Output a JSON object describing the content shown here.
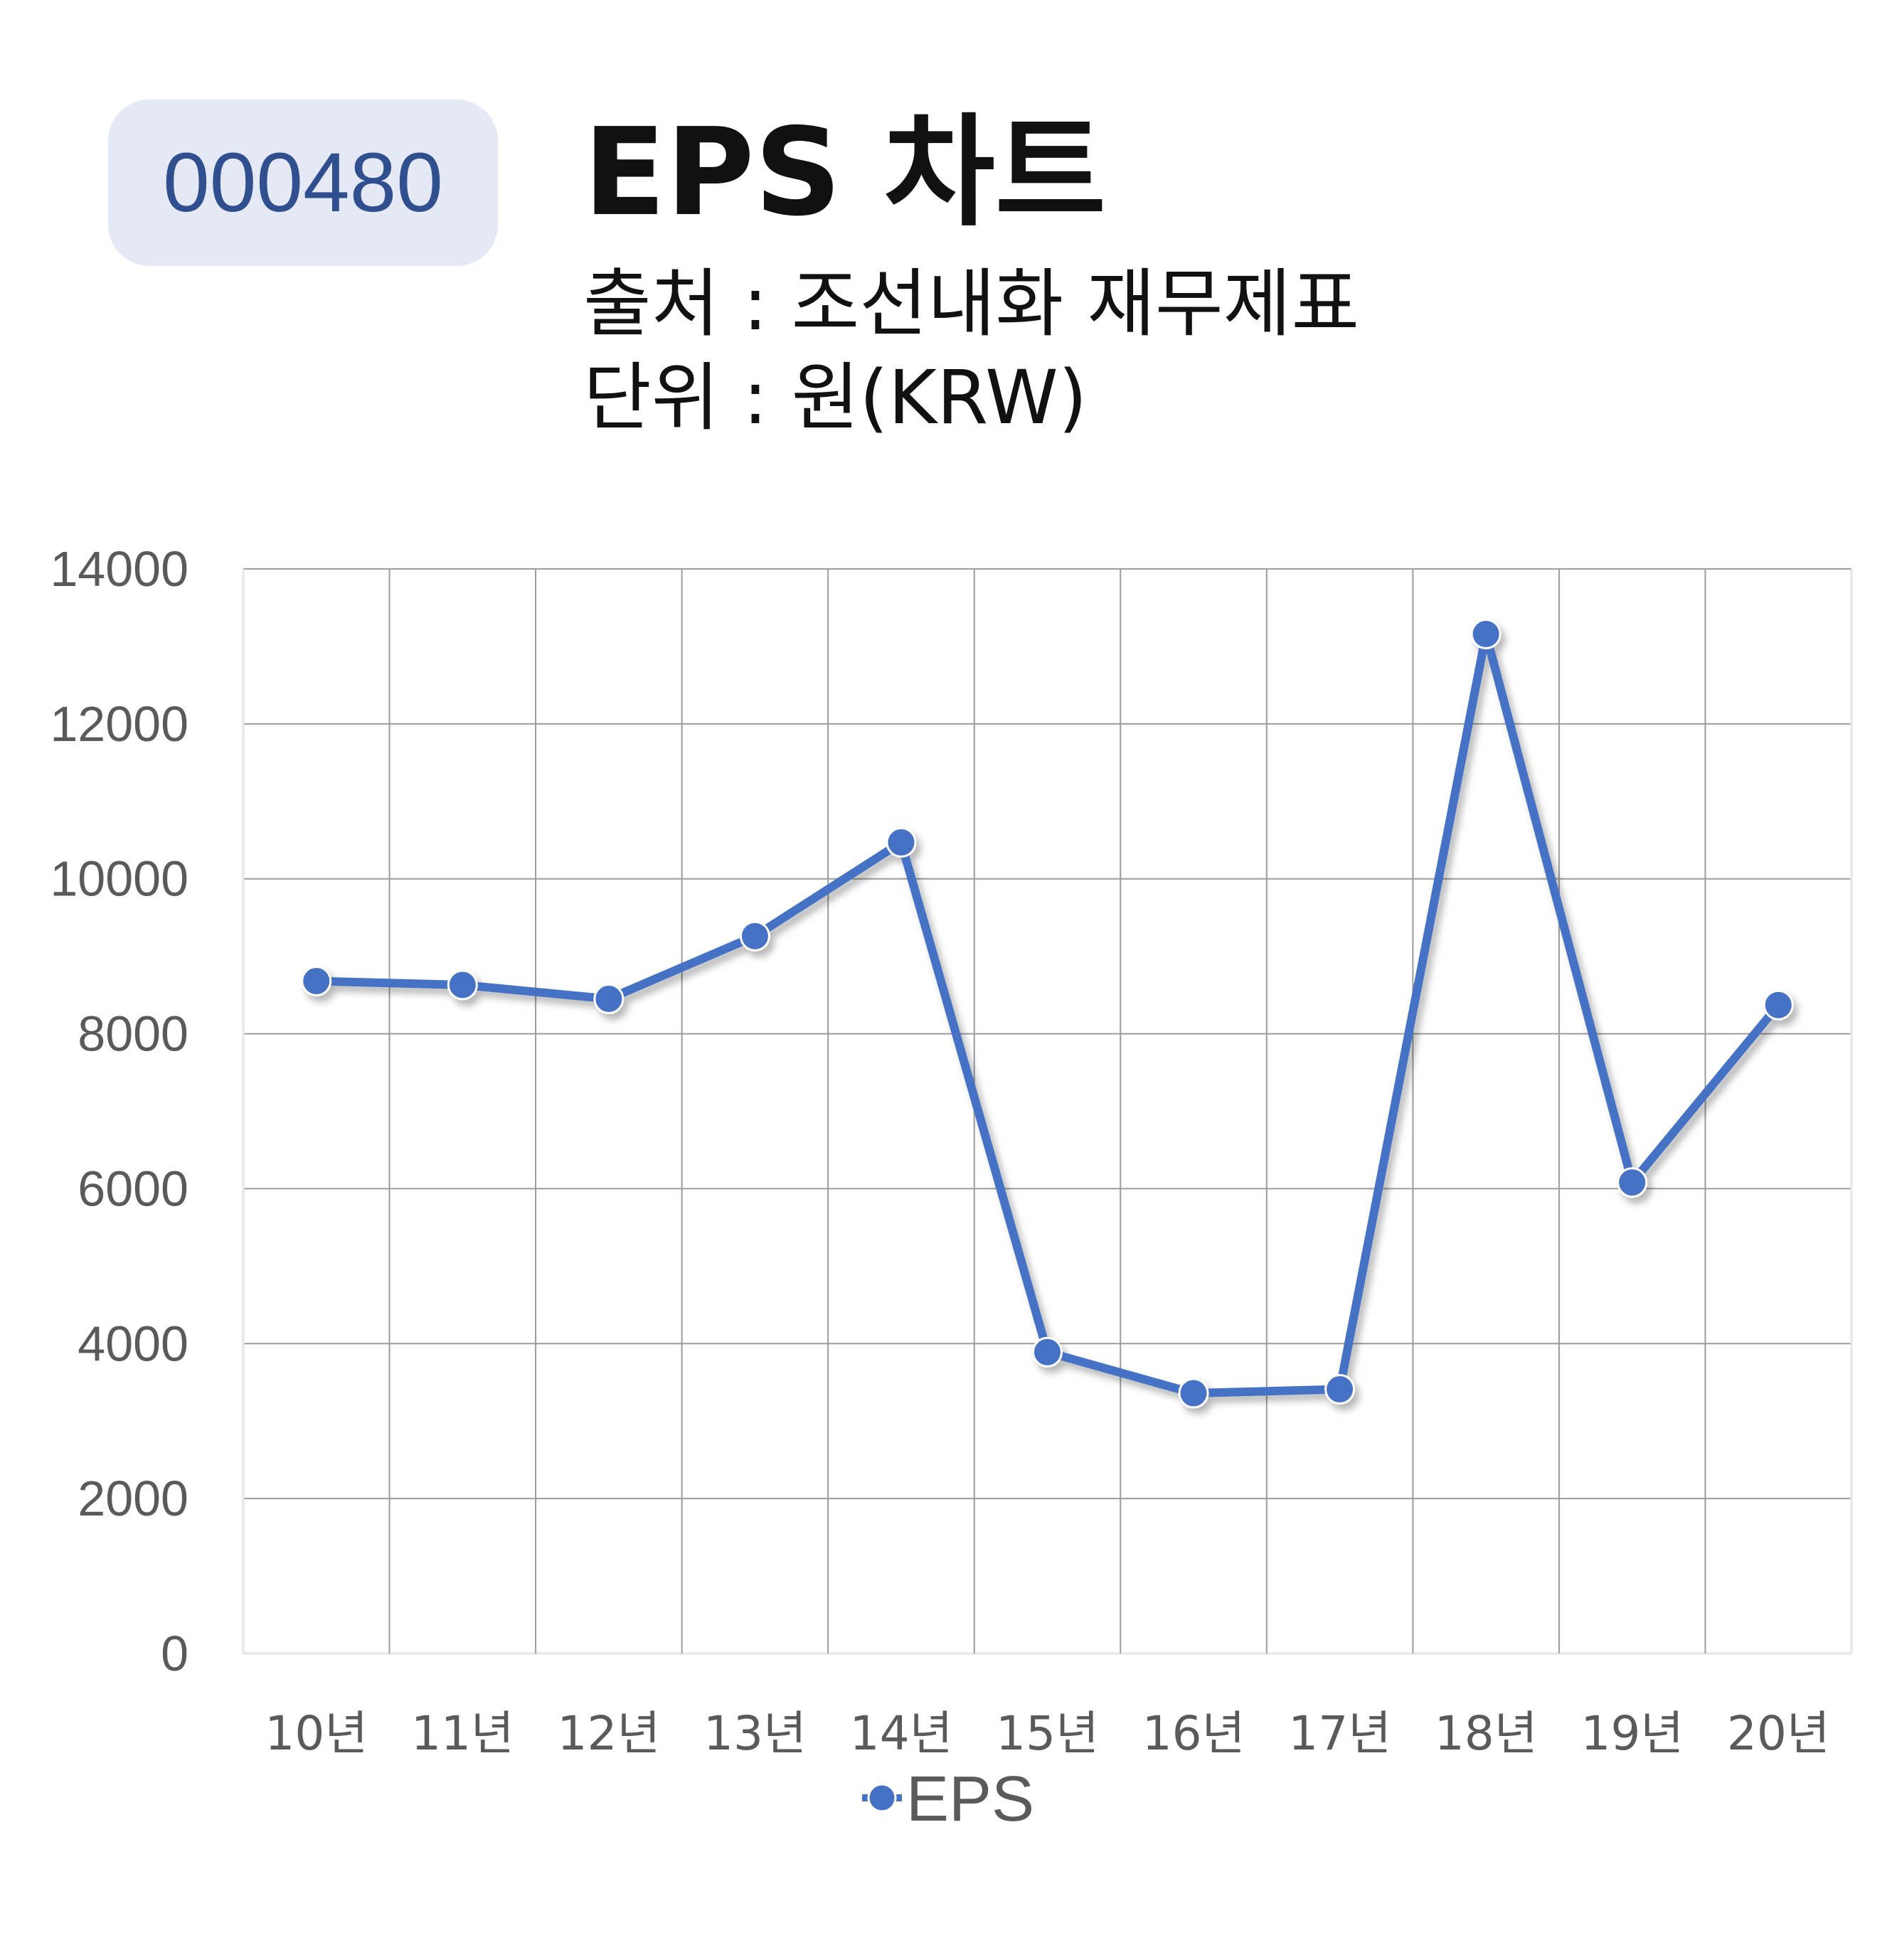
{
  "header": {
    "ticker": "000480",
    "title": "EPS 차트",
    "source": "출처 : 조선내화 재무제표",
    "unit": "단위 : 원(KRW)"
  },
  "chart_data": {
    "type": "line",
    "categories": [
      "10년",
      "11년",
      "12년",
      "13년",
      "14년",
      "15년",
      "16년",
      "17년",
      "18년",
      "19년",
      "20년"
    ],
    "series": [
      {
        "name": "EPS",
        "color": "#4472c4",
        "values": [
          8680,
          8630,
          8450,
          9260,
          10470,
          3890,
          3360,
          3410,
          13160,
          6080,
          8370
        ]
      }
    ],
    "ylim": [
      0,
      14000
    ],
    "yticks": [
      0,
      2000,
      4000,
      6000,
      8000,
      10000,
      12000,
      14000
    ],
    "grid": true,
    "legend": "bottom-center"
  }
}
